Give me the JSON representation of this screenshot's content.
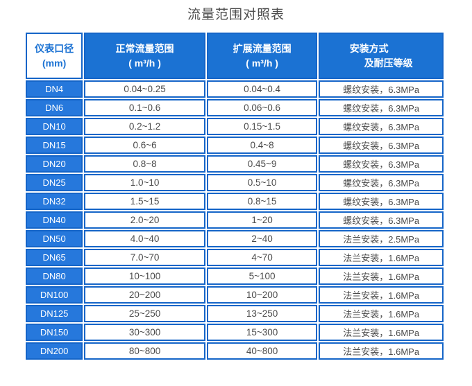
{
  "page": {
    "title": "流量范围对照表"
  },
  "table": {
    "headers": [
      {
        "lines": [
          "仪表口径",
          "(mm)"
        ]
      },
      {
        "lines": [
          "正常流量范围",
          "( m³/h )"
        ]
      },
      {
        "lines": [
          "扩展流量范围",
          "( m³/h )"
        ]
      },
      {
        "lines": [
          "安装方式",
          "及耐压等级"
        ]
      }
    ],
    "rows": [
      {
        "dn": "DN4",
        "normal": "0.04~0.25",
        "extended": "0.04~0.4",
        "install": "螺纹安装，6.3MPa"
      },
      {
        "dn": "DN6",
        "normal": "0.1~0.6",
        "extended": "0.06~0.6",
        "install": "螺纹安装，6.3MPa"
      },
      {
        "dn": "DN10",
        "normal": "0.2~1.2",
        "extended": "0.15~1.5",
        "install": "螺纹安装，6.3MPa"
      },
      {
        "dn": "DN15",
        "normal": "0.6~6",
        "extended": "0.4~8",
        "install": "螺纹安装，6.3MPa"
      },
      {
        "dn": "DN20",
        "normal": "0.8~8",
        "extended": "0.45~9",
        "install": "螺纹安装，6.3MPa"
      },
      {
        "dn": "DN25",
        "normal": "1.0~10",
        "extended": "0.5~10",
        "install": "螺纹安装，6.3MPa"
      },
      {
        "dn": "DN32",
        "normal": "1.5~15",
        "extended": "0.8~15",
        "install": "螺纹安装，6.3MPa"
      },
      {
        "dn": "DN40",
        "normal": "2.0~20",
        "extended": "1~20",
        "install": "螺纹安装，6.3MPa"
      },
      {
        "dn": "DN50",
        "normal": "4.0~40",
        "extended": "2~40",
        "install": "法兰安装，2.5MPa"
      },
      {
        "dn": "DN65",
        "normal": "7.0~70",
        "extended": "4~70",
        "install": "法兰安装，1.6MPa"
      },
      {
        "dn": "DN80",
        "normal": "10~100",
        "extended": "5~100",
        "install": "法兰安装，1.6MPa"
      },
      {
        "dn": "DN100",
        "normal": "20~200",
        "extended": "10~200",
        "install": "法兰安装，1.6MPa"
      },
      {
        "dn": "DN125",
        "normal": "25~250",
        "extended": "13~250",
        "install": "法兰安装，1.6MPa"
      },
      {
        "dn": "DN150",
        "normal": "30~300",
        "extended": "15~300",
        "install": "法兰安装，1.6MPa"
      },
      {
        "dn": "DN200",
        "normal": "80~800",
        "extended": "40~800",
        "install": "法兰安装，1.6MPa"
      }
    ]
  },
  "colors": {
    "header_bg": "#1b72d3",
    "label_cell_bg": "#2678dc",
    "cell_border": "#1565c8",
    "header_text": "#ffffff",
    "first_header_text": "#1b72d3",
    "data_text": "#4a4a4a",
    "title_text": "#4d4d4d"
  }
}
